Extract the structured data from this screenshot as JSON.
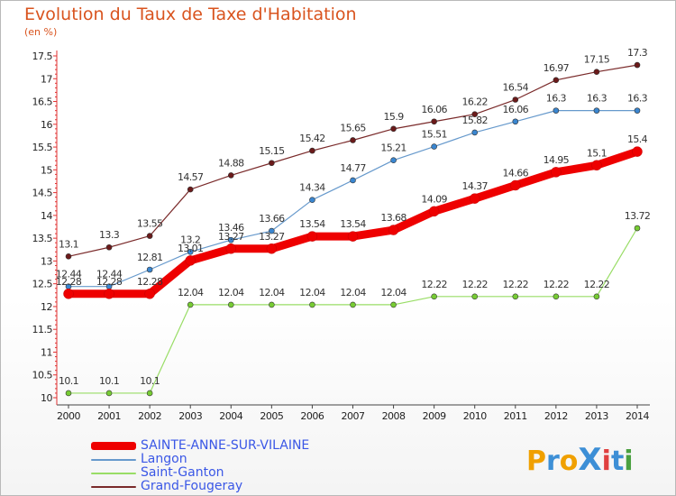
{
  "header": {
    "title": "Evolution du Taux de Taxe d'Habitation",
    "subtitle": "(en %)"
  },
  "logo": {
    "text": "ProXiti",
    "colors": [
      "#f0a000",
      "#3d8fd6",
      "#f0a000",
      "#3d8fd6",
      "#e04040",
      "#3d8fd6",
      "#4aa040"
    ]
  },
  "chart_data": {
    "type": "line",
    "title": "Evolution du Taux de Taxe d'Habitation",
    "subtitle": "(en %)",
    "xlabel": "",
    "ylabel": "",
    "x": [
      "2000",
      "2001",
      "2002",
      "2003",
      "2004",
      "2005",
      "2006",
      "2007",
      "2008",
      "2009",
      "2010",
      "2011",
      "2012",
      "2013",
      "2014"
    ],
    "ylim": [
      10,
      17.5
    ],
    "yticks": [
      "10",
      "10.5",
      "11",
      "11.5",
      "12",
      "12.5",
      "13",
      "13.5",
      "14",
      "14.5",
      "15",
      "15.5",
      "16",
      "16.5",
      "17",
      "17.5"
    ],
    "grid": false,
    "legend_position": "bottom-left",
    "series": [
      {
        "name": "SAINTE-ANNE-SUR-VILAINE",
        "color": "#ee0000",
        "point_color": "#ee0000",
        "width": 9,
        "values": [
          12.28,
          12.28,
          12.28,
          13.01,
          13.27,
          13.27,
          13.54,
          13.54,
          13.68,
          14.09,
          14.37,
          14.66,
          14.95,
          15.1,
          15.4
        ],
        "labels": [
          "12.28",
          "12.28",
          "12.28",
          "13.01",
          "13.27",
          "13.27",
          "13.54",
          "13.54",
          "13.68",
          "14.09",
          "14.37",
          "14.66",
          "14.95",
          "15.1",
          "15.4"
        ]
      },
      {
        "name": "Langon",
        "color": "#6699cc",
        "point_color": "#3a86d0",
        "width": 1.2,
        "values": [
          12.44,
          12.44,
          12.81,
          13.2,
          13.46,
          13.66,
          14.34,
          14.77,
          15.21,
          15.51,
          15.82,
          16.06,
          16.3,
          16.3,
          16.3
        ],
        "labels": [
          "12.44",
          "12.44",
          "12.81",
          "13.2",
          "13.46",
          "13.66",
          "14.34",
          "14.77",
          "15.21",
          "15.51",
          "15.82",
          "16.06",
          "16.3",
          "16.3",
          "16.3"
        ]
      },
      {
        "name": "Saint-Ganton",
        "color": "#99dd66",
        "point_color": "#77cc33",
        "width": 1.2,
        "values": [
          10.1,
          10.1,
          10.1,
          12.04,
          12.04,
          12.04,
          12.04,
          12.04,
          12.04,
          12.22,
          12.22,
          12.22,
          12.22,
          12.22,
          13.72
        ],
        "labels": [
          "10.1",
          "10.1",
          "10.1",
          "12.04",
          "12.04",
          "12.04",
          "12.04",
          "12.04",
          "12.04",
          "12.22",
          "12.22",
          "12.22",
          "12.22",
          "12.22",
          "13.72"
        ]
      },
      {
        "name": "Grand-Fougeray",
        "color": "#7a2a2a",
        "point_color": "#6b1a1a",
        "width": 1.2,
        "values": [
          13.1,
          13.3,
          13.55,
          14.57,
          14.88,
          15.15,
          15.42,
          15.65,
          15.9,
          16.06,
          16.22,
          16.54,
          16.97,
          17.15,
          17.3
        ],
        "labels": [
          "13.1",
          "13.3",
          "13.55",
          "14.57",
          "14.88",
          "15.15",
          "15.42",
          "15.65",
          "15.9",
          "16.06",
          "16.22",
          "16.54",
          "16.97",
          "17.15",
          "17.3"
        ]
      }
    ]
  }
}
